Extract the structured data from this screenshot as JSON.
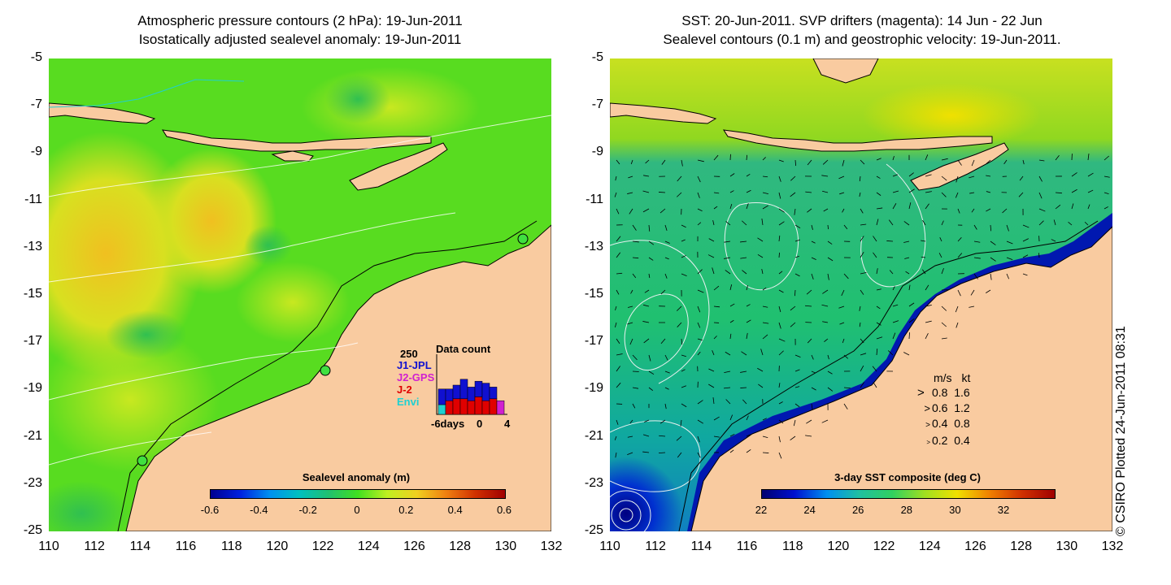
{
  "left_panel": {
    "title_line1": "Atmospheric pressure contours (2 hPa): 19-Jun-2011",
    "title_line2": "Isostatically adjusted sealevel anomaly: 19-Jun-2011",
    "colorbar_label": "Sealevel anomaly (m)",
    "colorbar_ticks": [
      "-0.6",
      "-0.4",
      "-0.2",
      "0",
      "0.2",
      "0.4",
      "0.6"
    ],
    "inset": {
      "title": "Data count",
      "ymax_label": "250",
      "missions": [
        {
          "label": "J1-JPL",
          "color": "#1010d0"
        },
        {
          "label": "J2-GPS",
          "color": "#d020d0"
        },
        {
          "label": "J-2",
          "color": "#e00000"
        },
        {
          "label": "Envi",
          "color": "#20d0d0"
        }
      ],
      "x_label_left": "-6days",
      "x_label_mid": "0",
      "x_label_right": "4",
      "bars": [
        {
          "envi": 0.25,
          "j2": 0.0,
          "j1": 0.4,
          "gps": 0.0
        },
        {
          "envi": 0.0,
          "j2": 0.35,
          "j1": 0.3,
          "gps": 0.0
        },
        {
          "envi": 0.0,
          "j2": 0.4,
          "j1": 0.35,
          "gps": 0.0
        },
        {
          "envi": 0.0,
          "j2": 0.4,
          "j1": 0.5,
          "gps": 0.0
        },
        {
          "envi": 0.0,
          "j2": 0.35,
          "j1": 0.35,
          "gps": 0.0
        },
        {
          "envi": 0.0,
          "j2": 0.45,
          "j1": 0.4,
          "gps": 0.0
        },
        {
          "envi": 0.0,
          "j2": 0.35,
          "j1": 0.45,
          "gps": 0.0
        },
        {
          "envi": 0.0,
          "j2": 0.4,
          "j1": 0.3,
          "gps": 0.0
        },
        {
          "envi": 0.0,
          "j2": 0.0,
          "j1": 0.0,
          "gps": 0.35
        }
      ]
    }
  },
  "right_panel": {
    "title_line1": "SST: 20-Jun-2011. SVP drifters (magenta): 14 Jun - 22 Jun",
    "title_line2": "Sealevel contours (0.1 m) and geostrophic velocity: 19-Jun-2011.",
    "colorbar_label": "3-day SST composite (deg C)",
    "colorbar_ticks": [
      "22",
      "24",
      "26",
      "28",
      "30",
      "32"
    ],
    "velocity_legend": {
      "header_ms": "m/s",
      "header_kt": "kt",
      "rows": [
        {
          "ms": "0.8",
          "kt": "1.6"
        },
        {
          "ms": "0.6",
          "kt": "1.2"
        },
        {
          "ms": "0.4",
          "kt": "0.8"
        },
        {
          "ms": "0.2",
          "kt": "0.4"
        }
      ]
    }
  },
  "axes": {
    "lat_ticks": [
      "-5",
      "-7",
      "-9",
      "-11",
      "-13",
      "-15",
      "-17",
      "-19",
      "-21",
      "-23",
      "-25"
    ],
    "lon_ticks": [
      "110",
      "112",
      "114",
      "116",
      "118",
      "120",
      "122",
      "124",
      "126",
      "128",
      "130",
      "132"
    ]
  },
  "credit": "© CSIRO Plotted 24-Jun-2011 08:31",
  "colors": {
    "land": "#f9cba0",
    "sla_colormap": [
      "#000090",
      "#0020e0",
      "#00a0f0",
      "#20c070",
      "#40e020",
      "#c0f020",
      "#f0d020",
      "#f08010",
      "#a00000"
    ],
    "sst_colormap": [
      "#000070",
      "#0010d0",
      "#0090f0",
      "#20c0a0",
      "#30d060",
      "#a0e020",
      "#f0e000",
      "#f08000",
      "#a00000"
    ]
  }
}
